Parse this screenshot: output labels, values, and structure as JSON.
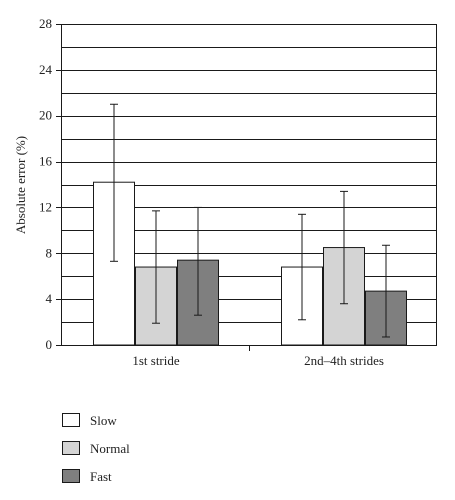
{
  "chart_data": {
    "type": "bar",
    "title": "",
    "xlabel": "",
    "ylabel": "Absolute error (%)",
    "ylim": [
      0,
      28
    ],
    "yticks": [
      0,
      4,
      8,
      12,
      16,
      20,
      24,
      28
    ],
    "categories": [
      "1st stride",
      "2nd–4th strides"
    ],
    "grid": true,
    "legend_position": "bottom-left",
    "series": [
      {
        "name": "Slow",
        "color": "#ffffff",
        "values": [
          14.2,
          6.8
        ],
        "error_low": [
          7.3,
          2.2
        ],
        "error_high": [
          21.0,
          11.4
        ]
      },
      {
        "name": "Normal",
        "color": "#d4d4d4",
        "values": [
          6.8,
          8.5
        ],
        "error_low": [
          1.9,
          3.6
        ],
        "error_high": [
          11.7,
          13.4
        ]
      },
      {
        "name": "Fast",
        "color": "#7f7f7f",
        "values": [
          7.4,
          4.7
        ],
        "error_low": [
          2.6,
          0.7
        ],
        "error_high": [
          12.0,
          8.7
        ]
      }
    ]
  }
}
